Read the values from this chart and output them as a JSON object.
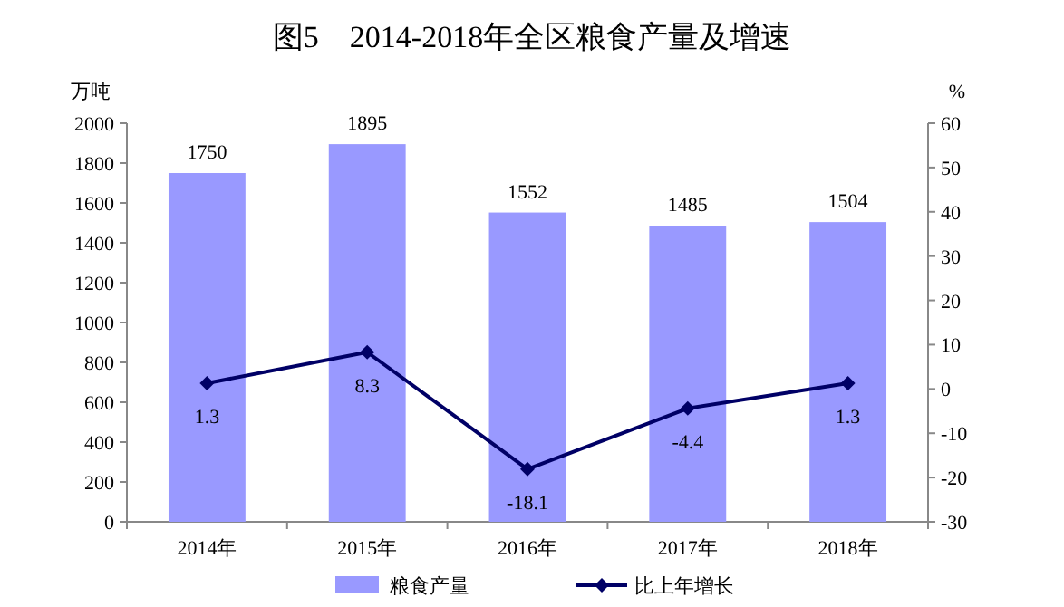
{
  "chart_data": {
    "type": "bar",
    "title": "图5　2014-2018年全区粮食产量及增速",
    "categories": [
      "2014年",
      "2015年",
      "2016年",
      "2017年",
      "2018年"
    ],
    "series": [
      {
        "name": "粮食产量",
        "color": "#9999ff",
        "values": [
          1750,
          1895,
          1552,
          1485,
          1504
        ]
      },
      {
        "name": "比上年增长",
        "type": "line",
        "axis": "y2",
        "color": "#000066",
        "marker": "diamond",
        "values": [
          1.3,
          8.3,
          -18.1,
          -4.4,
          1.3
        ]
      }
    ],
    "ylabel": "万吨",
    "y2label": "%",
    "ylim": [
      0,
      2000
    ],
    "yticks": [
      0,
      200,
      400,
      600,
      800,
      1000,
      1200,
      1400,
      1600,
      1800,
      2000
    ],
    "y2lim": [
      -30,
      60
    ],
    "y2ticks": [
      -30,
      -20,
      -10,
      0,
      10,
      20,
      30,
      40,
      50,
      60
    ],
    "data_labels": true,
    "legend": "bottom",
    "grid": false
  }
}
